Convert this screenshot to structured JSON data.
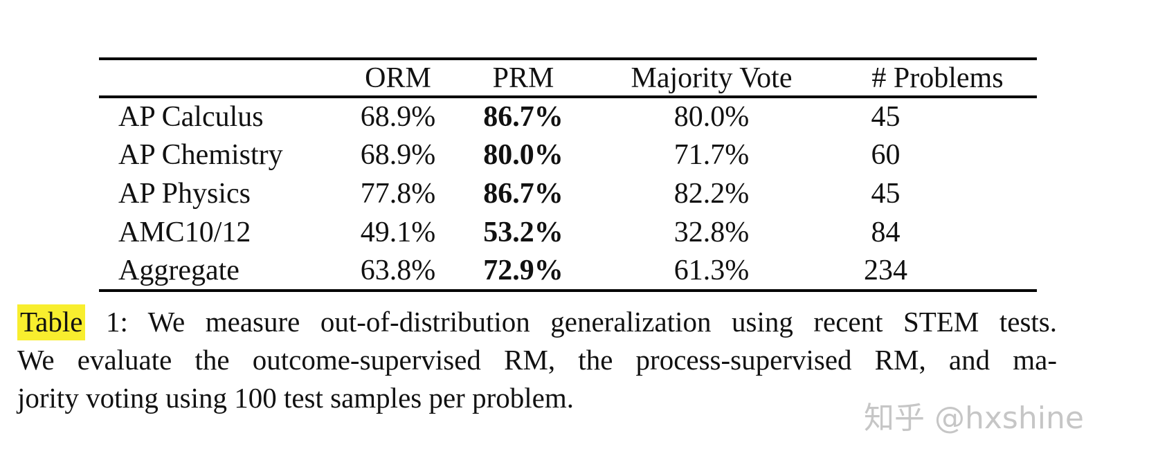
{
  "table": {
    "columns": [
      "",
      "ORM",
      "PRM",
      "Majority Vote",
      "# Problems"
    ],
    "rows": [
      {
        "label": "AP Calculus",
        "orm": "68.9%",
        "prm": "86.7%",
        "majority_vote": "80.0%",
        "problems": "45"
      },
      {
        "label": "AP Chemistry",
        "orm": "68.9%",
        "prm": "80.0%",
        "majority_vote": "71.7%",
        "problems": "60"
      },
      {
        "label": "AP Physics",
        "orm": "77.8%",
        "prm": "86.7%",
        "majority_vote": "82.2%",
        "problems": "45"
      },
      {
        "label": "AMC10/12",
        "orm": "49.1%",
        "prm": "53.2%",
        "majority_vote": "32.8%",
        "problems": "84"
      },
      {
        "label": "Aggregate",
        "orm": "63.8%",
        "prm": "72.9%",
        "majority_vote": "61.3%",
        "problems": "234"
      }
    ]
  },
  "caption": {
    "highlighted_word": "Table",
    "line1_rest": " 1:  We measure out-of-distribution generalization using recent STEM tests.",
    "line2": "We evaluate the outcome-supervised RM, the process-supervised RM, and ma-",
    "line3": "jority voting using 100 test samples per problem."
  },
  "watermark": {
    "text": "知乎 @hxshine"
  },
  "colors": {
    "highlight": "#f8ee2e",
    "watermark": "#c6c6c6",
    "text": "#111111",
    "background": "#ffffff"
  }
}
